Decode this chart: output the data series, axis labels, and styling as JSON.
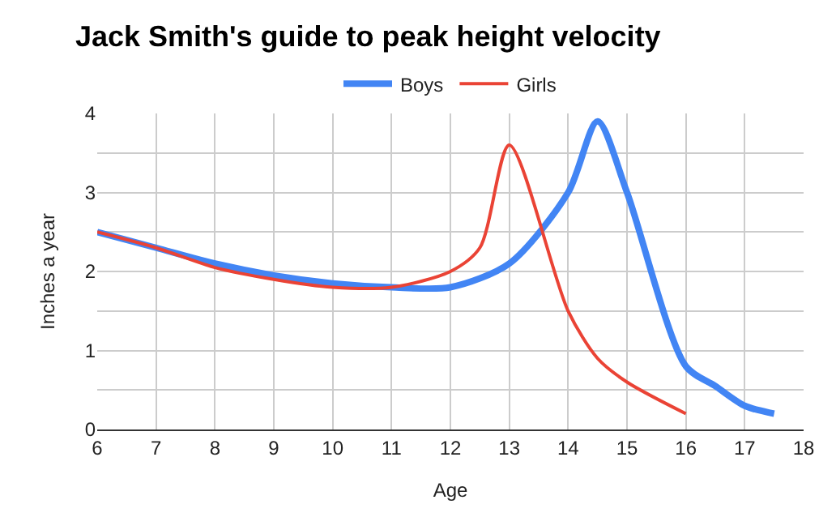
{
  "chart_data": {
    "type": "line",
    "title": "Jack Smith's guide to peak height velocity",
    "xlabel": "Age",
    "ylabel": "Inches a year",
    "series": [
      {
        "name": "Boys",
        "color": "#4285f4",
        "x": [
          6,
          7,
          8,
          9,
          10,
          11,
          12,
          13,
          14,
          14.5,
          15,
          16,
          16.5,
          17,
          17.5
        ],
        "values": [
          2.5,
          2.3,
          2.1,
          1.95,
          1.85,
          1.8,
          1.8,
          2.1,
          3.0,
          3.9,
          3.0,
          0.8,
          0.55,
          0.3,
          0.2
        ]
      },
      {
        "name": "Girls",
        "color": "#ea4335",
        "x": [
          6,
          7,
          8,
          9,
          10,
          11,
          12,
          12.5,
          13,
          14,
          14.5,
          15,
          16
        ],
        "values": [
          2.5,
          2.3,
          2.05,
          1.9,
          1.8,
          1.8,
          2.0,
          2.3,
          3.6,
          1.5,
          0.9,
          0.6,
          0.2
        ]
      }
    ],
    "xlim": [
      6,
      18
    ],
    "xticks": [
      6,
      7,
      8,
      9,
      10,
      11,
      12,
      13,
      14,
      15,
      16,
      17,
      18
    ],
    "ylim": [
      0,
      4
    ],
    "yticks": [
      0,
      {
        "value": 0.5,
        "label": null
      },
      1,
      {
        "value": 1.5,
        "label": null
      },
      2,
      {
        "value": 2.5,
        "label": null
      },
      3,
      {
        "value": 3.5,
        "label": null
      },
      4
    ],
    "grid": true,
    "legend": "top",
    "marker": "none",
    "line_style": "solid"
  }
}
